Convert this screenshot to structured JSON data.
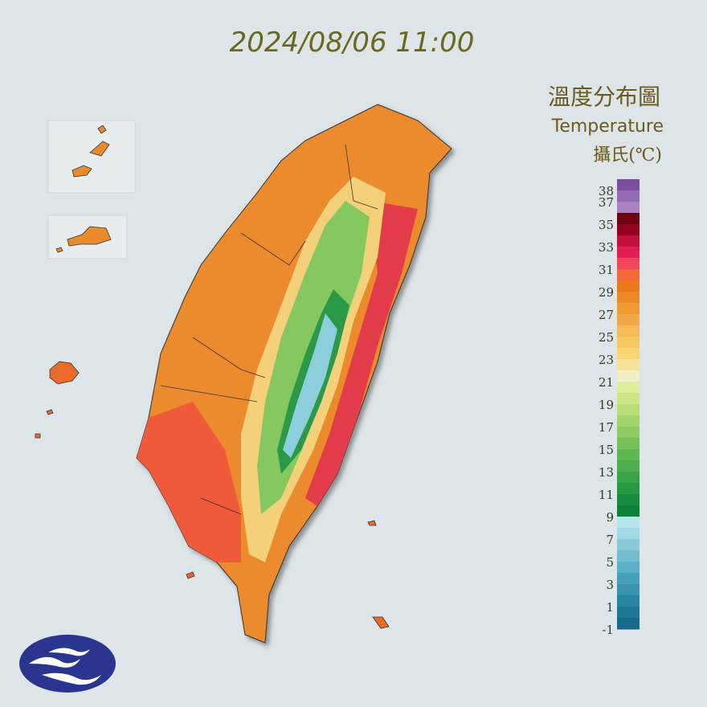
{
  "header": {
    "timestamp": "2024/08/06 11:00"
  },
  "legend": {
    "title": "溫度分布圖",
    "subtitle": "Temperature",
    "unit": "攝氏(℃)",
    "ticks": [
      38,
      37,
      35,
      33,
      31,
      29,
      27,
      25,
      23,
      21,
      19,
      17,
      15,
      13,
      11,
      9,
      7,
      5,
      3,
      1,
      -1
    ],
    "colors": [
      "#7d4da3",
      "#9469b4",
      "#a982c2",
      "#6e0010",
      "#960020",
      "#c0103c",
      "#e01e52",
      "#f0485a",
      "#f26a3a",
      "#ea7a1e",
      "#ee8a26",
      "#f09a34",
      "#f2aa48",
      "#f4ba56",
      "#f6c862",
      "#f8d676",
      "#f7e49a",
      "#f2f0c4",
      "#e0f09a",
      "#cce684",
      "#b8de74",
      "#a2d66a",
      "#8ccc62",
      "#76c25a",
      "#60b852",
      "#4cae4c",
      "#38a446",
      "#269842",
      "#178c3e",
      "#0d823a",
      "#b6e6ec",
      "#a0dae4",
      "#88ccda",
      "#70bed0",
      "#5ab0c6",
      "#46a2ba",
      "#3694ae",
      "#2886a2",
      "#1d7896",
      "#156a8a"
    ]
  }
}
